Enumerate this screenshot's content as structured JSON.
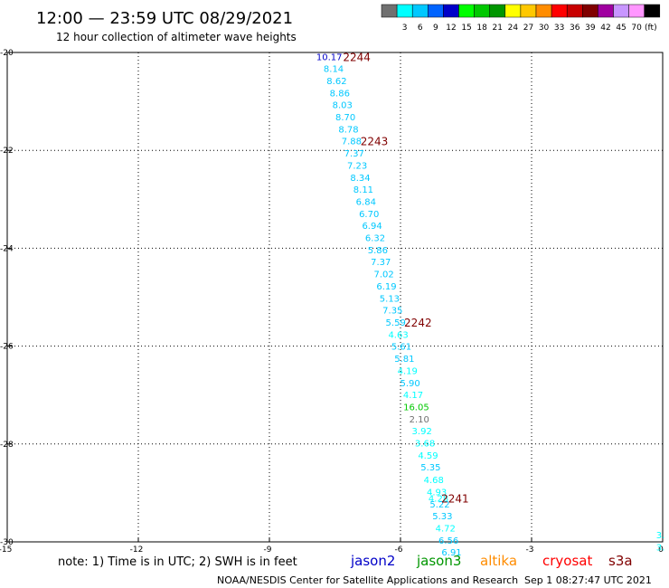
{
  "header": {
    "title": "12:00 — 23:59 UTC 08/29/2021",
    "subtitle": "12 hour collection of altimeter wave heights"
  },
  "colorbar": {
    "unit": "(ft)",
    "bins": [
      {
        "label": "",
        "color": "#707070"
      },
      {
        "label": "3",
        "color": "#00ffff"
      },
      {
        "label": "6",
        "color": "#00c8ff"
      },
      {
        "label": "9",
        "color": "#0064ff"
      },
      {
        "label": "12",
        "color": "#0000c8"
      },
      {
        "label": "15",
        "color": "#00ff00"
      },
      {
        "label": "18",
        "color": "#00c800"
      },
      {
        "label": "21",
        "color": "#009600"
      },
      {
        "label": "24",
        "color": "#ffff00"
      },
      {
        "label": "27",
        "color": "#ffc800"
      },
      {
        "label": "30",
        "color": "#ff8c00"
      },
      {
        "label": "33",
        "color": "#ff0000"
      },
      {
        "label": "36",
        "color": "#c80000"
      },
      {
        "label": "39",
        "color": "#800000"
      },
      {
        "label": "42",
        "color": "#a000a0"
      },
      {
        "label": "45",
        "color": "#c896ff"
      },
      {
        "label": "70",
        "color": "#ff96ff"
      },
      {
        "label": "",
        "color": "#000000"
      }
    ]
  },
  "chart_data": {
    "type": "scatter",
    "xlim": [
      -15,
      0
    ],
    "ylim": [
      -30,
      -20
    ],
    "xticks": [
      -15,
      -12,
      -9,
      -6,
      -3,
      0
    ],
    "yticks": [
      -20,
      -22,
      -24,
      -26,
      -28,
      -30
    ],
    "grid": true,
    "points": [
      {
        "x": -7.63,
        "y": -20.08,
        "label": "10.17",
        "color": "#0000c8"
      },
      {
        "x": -7.53,
        "y": -20.32,
        "label": "8.14",
        "color": "#00c8ff"
      },
      {
        "x": -7.46,
        "y": -20.57,
        "label": "8.62",
        "color": "#00c8ff"
      },
      {
        "x": -7.39,
        "y": -20.82,
        "label": "8.86",
        "color": "#00c8ff"
      },
      {
        "x": -7.33,
        "y": -21.06,
        "label": "8.03",
        "color": "#00c8ff"
      },
      {
        "x": -7.26,
        "y": -21.31,
        "label": "8.70",
        "color": "#00c8ff"
      },
      {
        "x": -7.19,
        "y": -21.56,
        "label": "8.78",
        "color": "#00c8ff"
      },
      {
        "x": -7.12,
        "y": -21.8,
        "label": "7.88",
        "color": "#00c8ff"
      },
      {
        "x": -7.06,
        "y": -22.05,
        "label": "7.37",
        "color": "#00c8ff"
      },
      {
        "x": -6.99,
        "y": -22.3,
        "label": "7.23",
        "color": "#00c8ff"
      },
      {
        "x": -6.92,
        "y": -22.55,
        "label": "8.34",
        "color": "#00c8ff"
      },
      {
        "x": -6.85,
        "y": -22.79,
        "label": "8.11",
        "color": "#00c8ff"
      },
      {
        "x": -6.79,
        "y": -23.04,
        "label": "6.84",
        "color": "#00c8ff"
      },
      {
        "x": -6.72,
        "y": -23.29,
        "label": "6.70",
        "color": "#00c8ff"
      },
      {
        "x": -6.65,
        "y": -23.53,
        "label": "6.94",
        "color": "#00c8ff"
      },
      {
        "x": -6.58,
        "y": -23.78,
        "label": "6.32",
        "color": "#00c8ff"
      },
      {
        "x": -6.52,
        "y": -24.03,
        "label": "5.86",
        "color": "#00c8ff"
      },
      {
        "x": -6.45,
        "y": -24.27,
        "label": "7.37",
        "color": "#00c8ff"
      },
      {
        "x": -6.38,
        "y": -24.52,
        "label": "7.02",
        "color": "#00c8ff"
      },
      {
        "x": -6.32,
        "y": -24.77,
        "label": "6.19",
        "color": "#00c8ff"
      },
      {
        "x": -6.25,
        "y": -25.02,
        "label": "5.13",
        "color": "#00c8ff"
      },
      {
        "x": -6.18,
        "y": -25.26,
        "label": "7.35",
        "color": "#00c8ff"
      },
      {
        "x": -6.11,
        "y": -25.51,
        "label": "5.59",
        "color": "#00c8ff"
      },
      {
        "x": -6.05,
        "y": -25.76,
        "label": "4.63",
        "color": "#00ffff"
      },
      {
        "x": -5.98,
        "y": -26.0,
        "label": "5.61",
        "color": "#00c8ff"
      },
      {
        "x": -5.91,
        "y": -26.25,
        "label": "5.81",
        "color": "#00c8ff"
      },
      {
        "x": -5.84,
        "y": -26.5,
        "label": "4.19",
        "color": "#00ffff"
      },
      {
        "x": -5.78,
        "y": -26.75,
        "label": "5.90",
        "color": "#00c8ff"
      },
      {
        "x": -5.71,
        "y": -26.99,
        "label": "4.17",
        "color": "#00ffff"
      },
      {
        "x": -5.64,
        "y": -27.24,
        "label": "16.05",
        "color": "#00c800"
      },
      {
        "x": -5.57,
        "y": -27.49,
        "label": "2.10",
        "color": "#707070"
      },
      {
        "x": -5.51,
        "y": -27.73,
        "label": "3.92",
        "color": "#00ffff"
      },
      {
        "x": -5.44,
        "y": -27.98,
        "label": "3.68",
        "color": "#00ffff"
      },
      {
        "x": -5.37,
        "y": -28.23,
        "label": "4.59",
        "color": "#00ffff"
      },
      {
        "x": -5.31,
        "y": -28.47,
        "label": "5.35",
        "color": "#00c8ff"
      },
      {
        "x": -5.24,
        "y": -28.72,
        "label": "4.68",
        "color": "#00ffff"
      },
      {
        "x": -5.17,
        "y": -28.97,
        "label": "4.93",
        "color": "#00ffff"
      },
      {
        "x": -5.13,
        "y": -29.1,
        "label": "4.28",
        "color": "#00ffff"
      },
      {
        "x": -5.1,
        "y": -29.22,
        "label": "5.22",
        "color": "#00c8ff"
      },
      {
        "x": -5.04,
        "y": -29.46,
        "label": "5.33",
        "color": "#00c8ff"
      },
      {
        "x": -4.97,
        "y": -29.71,
        "label": "4.72",
        "color": "#00ffff"
      },
      {
        "x": -4.9,
        "y": -29.96,
        "label": "6.56",
        "color": "#00c8ff"
      },
      {
        "x": -4.83,
        "y": -30.2,
        "label": "6.91",
        "color": "#00c8ff"
      },
      {
        "x": -0.05,
        "y": -29.85,
        "label": "3.",
        "color": "#00ffff"
      },
      {
        "x": -0.05,
        "y": -30.1,
        "label": "3.",
        "color": "#00ffff"
      }
    ],
    "annotations": [
      {
        "x": -7.0,
        "y": -20.08,
        "label": "2244",
        "color": "#800000"
      },
      {
        "x": -6.6,
        "y": -21.8,
        "label": "2243",
        "color": "#800000"
      },
      {
        "x": -5.6,
        "y": -25.51,
        "label": "2242",
        "color": "#800000"
      },
      {
        "x": -4.75,
        "y": -29.1,
        "label": "2241",
        "color": "#800000"
      }
    ]
  },
  "footer": {
    "note": "note: 1) Time is in UTC; 2) SWH is in feet",
    "satellites": [
      {
        "name": "jason2",
        "color": "#0000c8"
      },
      {
        "name": "jason3",
        "color": "#009600"
      },
      {
        "name": "altika",
        "color": "#ff8c00"
      },
      {
        "name": "cryosat",
        "color": "#ff0000"
      },
      {
        "name": "s3a",
        "color": "#800000"
      }
    ],
    "credit": "NOAA/NESDIS Center for Satellite Applications and Research",
    "timestamp": "Sep  1 08:27:47 UTC 2021"
  }
}
